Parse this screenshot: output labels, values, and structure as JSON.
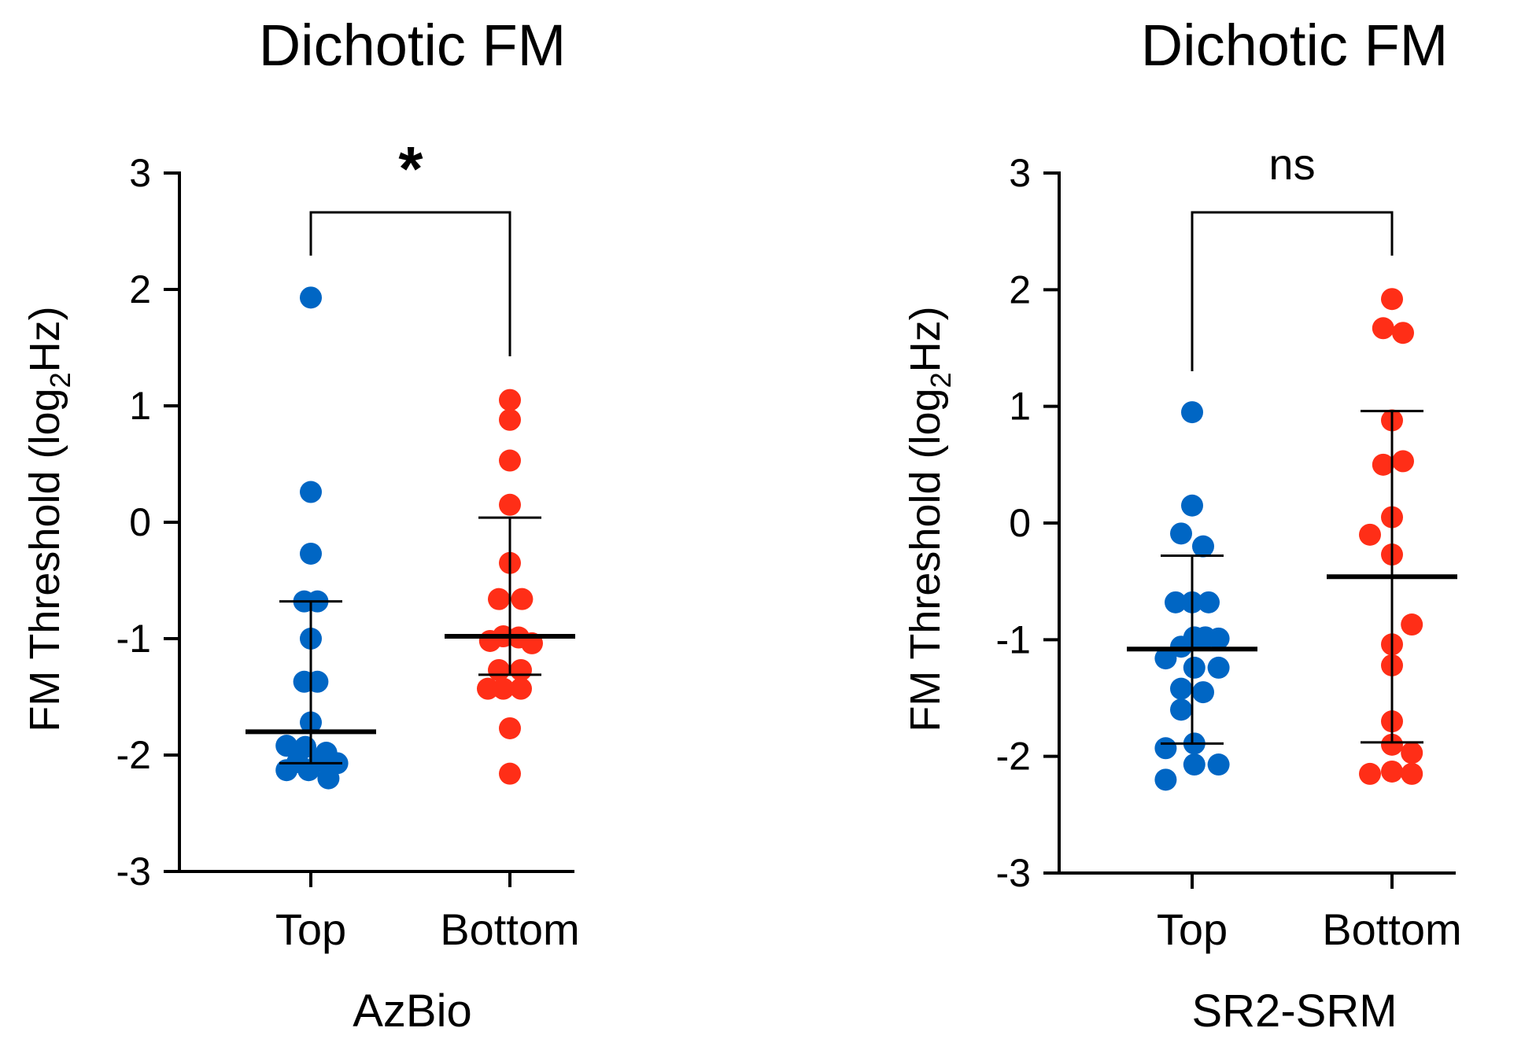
{
  "colors": {
    "top": "#0066c4",
    "bottom": "#ff2e17",
    "ink": "#000000"
  },
  "chart_data": [
    {
      "type": "scatter",
      "title": "Dichotic FM",
      "xlabel": "AzBio",
      "ylabel_main": "FM Threshold (log",
      "ylabel_sub": "2",
      "ylabel_end": "Hz)",
      "ylim": [
        -3,
        3
      ],
      "yticks": [
        -3,
        -2,
        -1,
        0,
        1,
        2,
        3
      ],
      "ytick_labels": [
        "-3",
        "-2",
        "-1",
        "0",
        "1",
        "2",
        "3"
      ],
      "categories": [
        "Top",
        "Bottom"
      ],
      "significance": "*",
      "series": [
        {
          "name": "Top",
          "mean": -1.8,
          "err_low": -2.07,
          "err_high": -0.68,
          "points": [
            {
              "dx": 0,
              "y": 1.93
            },
            {
              "dx": 0,
              "y": 0.26
            },
            {
              "dx": 0,
              "y": -0.27
            },
            {
              "dx": -0.3,
              "y": -0.68
            },
            {
              "dx": 0.3,
              "y": -0.68
            },
            {
              "dx": 0,
              "y": -1.0
            },
            {
              "dx": -0.3,
              "y": -1.37
            },
            {
              "dx": 0.3,
              "y": -1.37
            },
            {
              "dx": 0,
              "y": -1.72
            },
            {
              "dx": -1.1,
              "y": -1.92
            },
            {
              "dx": -0.25,
              "y": -1.93
            },
            {
              "dx": 0.7,
              "y": -1.98
            },
            {
              "dx": -1.1,
              "y": -2.13
            },
            {
              "dx": -0.6,
              "y": -2.06
            },
            {
              "dx": -0.1,
              "y": -2.13
            },
            {
              "dx": 0.4,
              "y": -2.05
            },
            {
              "dx": 0.8,
              "y": -2.2
            },
            {
              "dx": 1.2,
              "y": -2.07
            }
          ]
        },
        {
          "name": "Bottom",
          "mean": -0.98,
          "err_low": -1.31,
          "err_high": 0.04,
          "points": [
            {
              "dx": 0,
              "y": 1.05
            },
            {
              "dx": 0,
              "y": 0.88
            },
            {
              "dx": 0,
              "y": 0.53
            },
            {
              "dx": 0,
              "y": 0.15
            },
            {
              "dx": 0,
              "y": -0.35
            },
            {
              "dx": -0.5,
              "y": -0.66
            },
            {
              "dx": 0.55,
              "y": -0.66
            },
            {
              "dx": -0.9,
              "y": -1.02
            },
            {
              "dx": -0.3,
              "y": -0.98
            },
            {
              "dx": 0.4,
              "y": -0.99
            },
            {
              "dx": 1.0,
              "y": -1.04
            },
            {
              "dx": -0.5,
              "y": -1.27
            },
            {
              "dx": 0.5,
              "y": -1.27
            },
            {
              "dx": -1.0,
              "y": -1.43
            },
            {
              "dx": -0.3,
              "y": -1.43
            },
            {
              "dx": 0.5,
              "y": -1.43
            },
            {
              "dx": 0,
              "y": -1.77
            },
            {
              "dx": 0,
              "y": -2.16
            }
          ]
        }
      ]
    },
    {
      "type": "scatter",
      "title": "Dichotic FM",
      "xlabel": "SR2-SRM",
      "ylabel_main": "FM Threshold (log",
      "ylabel_sub": "2",
      "ylabel_end": "Hz)",
      "ylim": [
        -3,
        3
      ],
      "yticks": [
        -3,
        -2,
        -1,
        0,
        1,
        2,
        3
      ],
      "ytick_labels": [
        "-3",
        "-2",
        "-1",
        "0",
        "1",
        "2",
        "3"
      ],
      "categories": [
        "Top",
        "Bottom"
      ],
      "significance": "ns",
      "series": [
        {
          "name": "Top",
          "mean": -1.08,
          "err_low": -1.89,
          "err_high": -0.28,
          "points": [
            {
              "dx": 0,
              "y": 0.95
            },
            {
              "dx": 0,
              "y": 0.15
            },
            {
              "dx": -0.5,
              "y": -0.09
            },
            {
              "dx": 0.5,
              "y": -0.2
            },
            {
              "dx": -0.75,
              "y": -0.68
            },
            {
              "dx": 0,
              "y": -0.68
            },
            {
              "dx": 0.75,
              "y": -0.68
            },
            {
              "dx": -1.2,
              "y": -1.16
            },
            {
              "dx": -0.5,
              "y": -1.06
            },
            {
              "dx": 0.1,
              "y": -0.98
            },
            {
              "dx": 0.6,
              "y": -0.98
            },
            {
              "dx": 1.2,
              "y": -0.99
            },
            {
              "dx": 1.2,
              "y": -1.24
            },
            {
              "dx": -0.5,
              "y": -1.42
            },
            {
              "dx": 0.1,
              "y": -1.24
            },
            {
              "dx": 0.5,
              "y": -1.45
            },
            {
              "dx": -0.5,
              "y": -1.6
            },
            {
              "dx": 0.1,
              "y": -1.89
            },
            {
              "dx": -1.2,
              "y": -1.93
            },
            {
              "dx": -1.2,
              "y": -2.2
            },
            {
              "dx": 0.1,
              "y": -2.07
            },
            {
              "dx": 1.2,
              "y": -2.07
            }
          ]
        },
        {
          "name": "Bottom",
          "mean": -0.46,
          "err_low": -1.88,
          "err_high": 0.96,
          "points": [
            {
              "dx": 0,
              "y": 1.92
            },
            {
              "dx": -0.4,
              "y": 1.67
            },
            {
              "dx": 0.5,
              "y": 1.63
            },
            {
              "dx": 0,
              "y": 0.88
            },
            {
              "dx": -0.4,
              "y": 0.5
            },
            {
              "dx": 0.5,
              "y": 0.53
            },
            {
              "dx": -1.0,
              "y": -0.1
            },
            {
              "dx": 0,
              "y": 0.05
            },
            {
              "dx": 0,
              "y": -0.27
            },
            {
              "dx": 0.9,
              "y": -0.87
            },
            {
              "dx": 0,
              "y": -1.04
            },
            {
              "dx": 0,
              "y": -1.22
            },
            {
              "dx": 0,
              "y": -1.7
            },
            {
              "dx": 0,
              "y": -1.9
            },
            {
              "dx": -1.0,
              "y": -2.15
            },
            {
              "dx": 0,
              "y": -2.13
            },
            {
              "dx": 0.9,
              "y": -1.97
            },
            {
              "dx": 0.9,
              "y": -2.15
            }
          ]
        }
      ]
    }
  ]
}
